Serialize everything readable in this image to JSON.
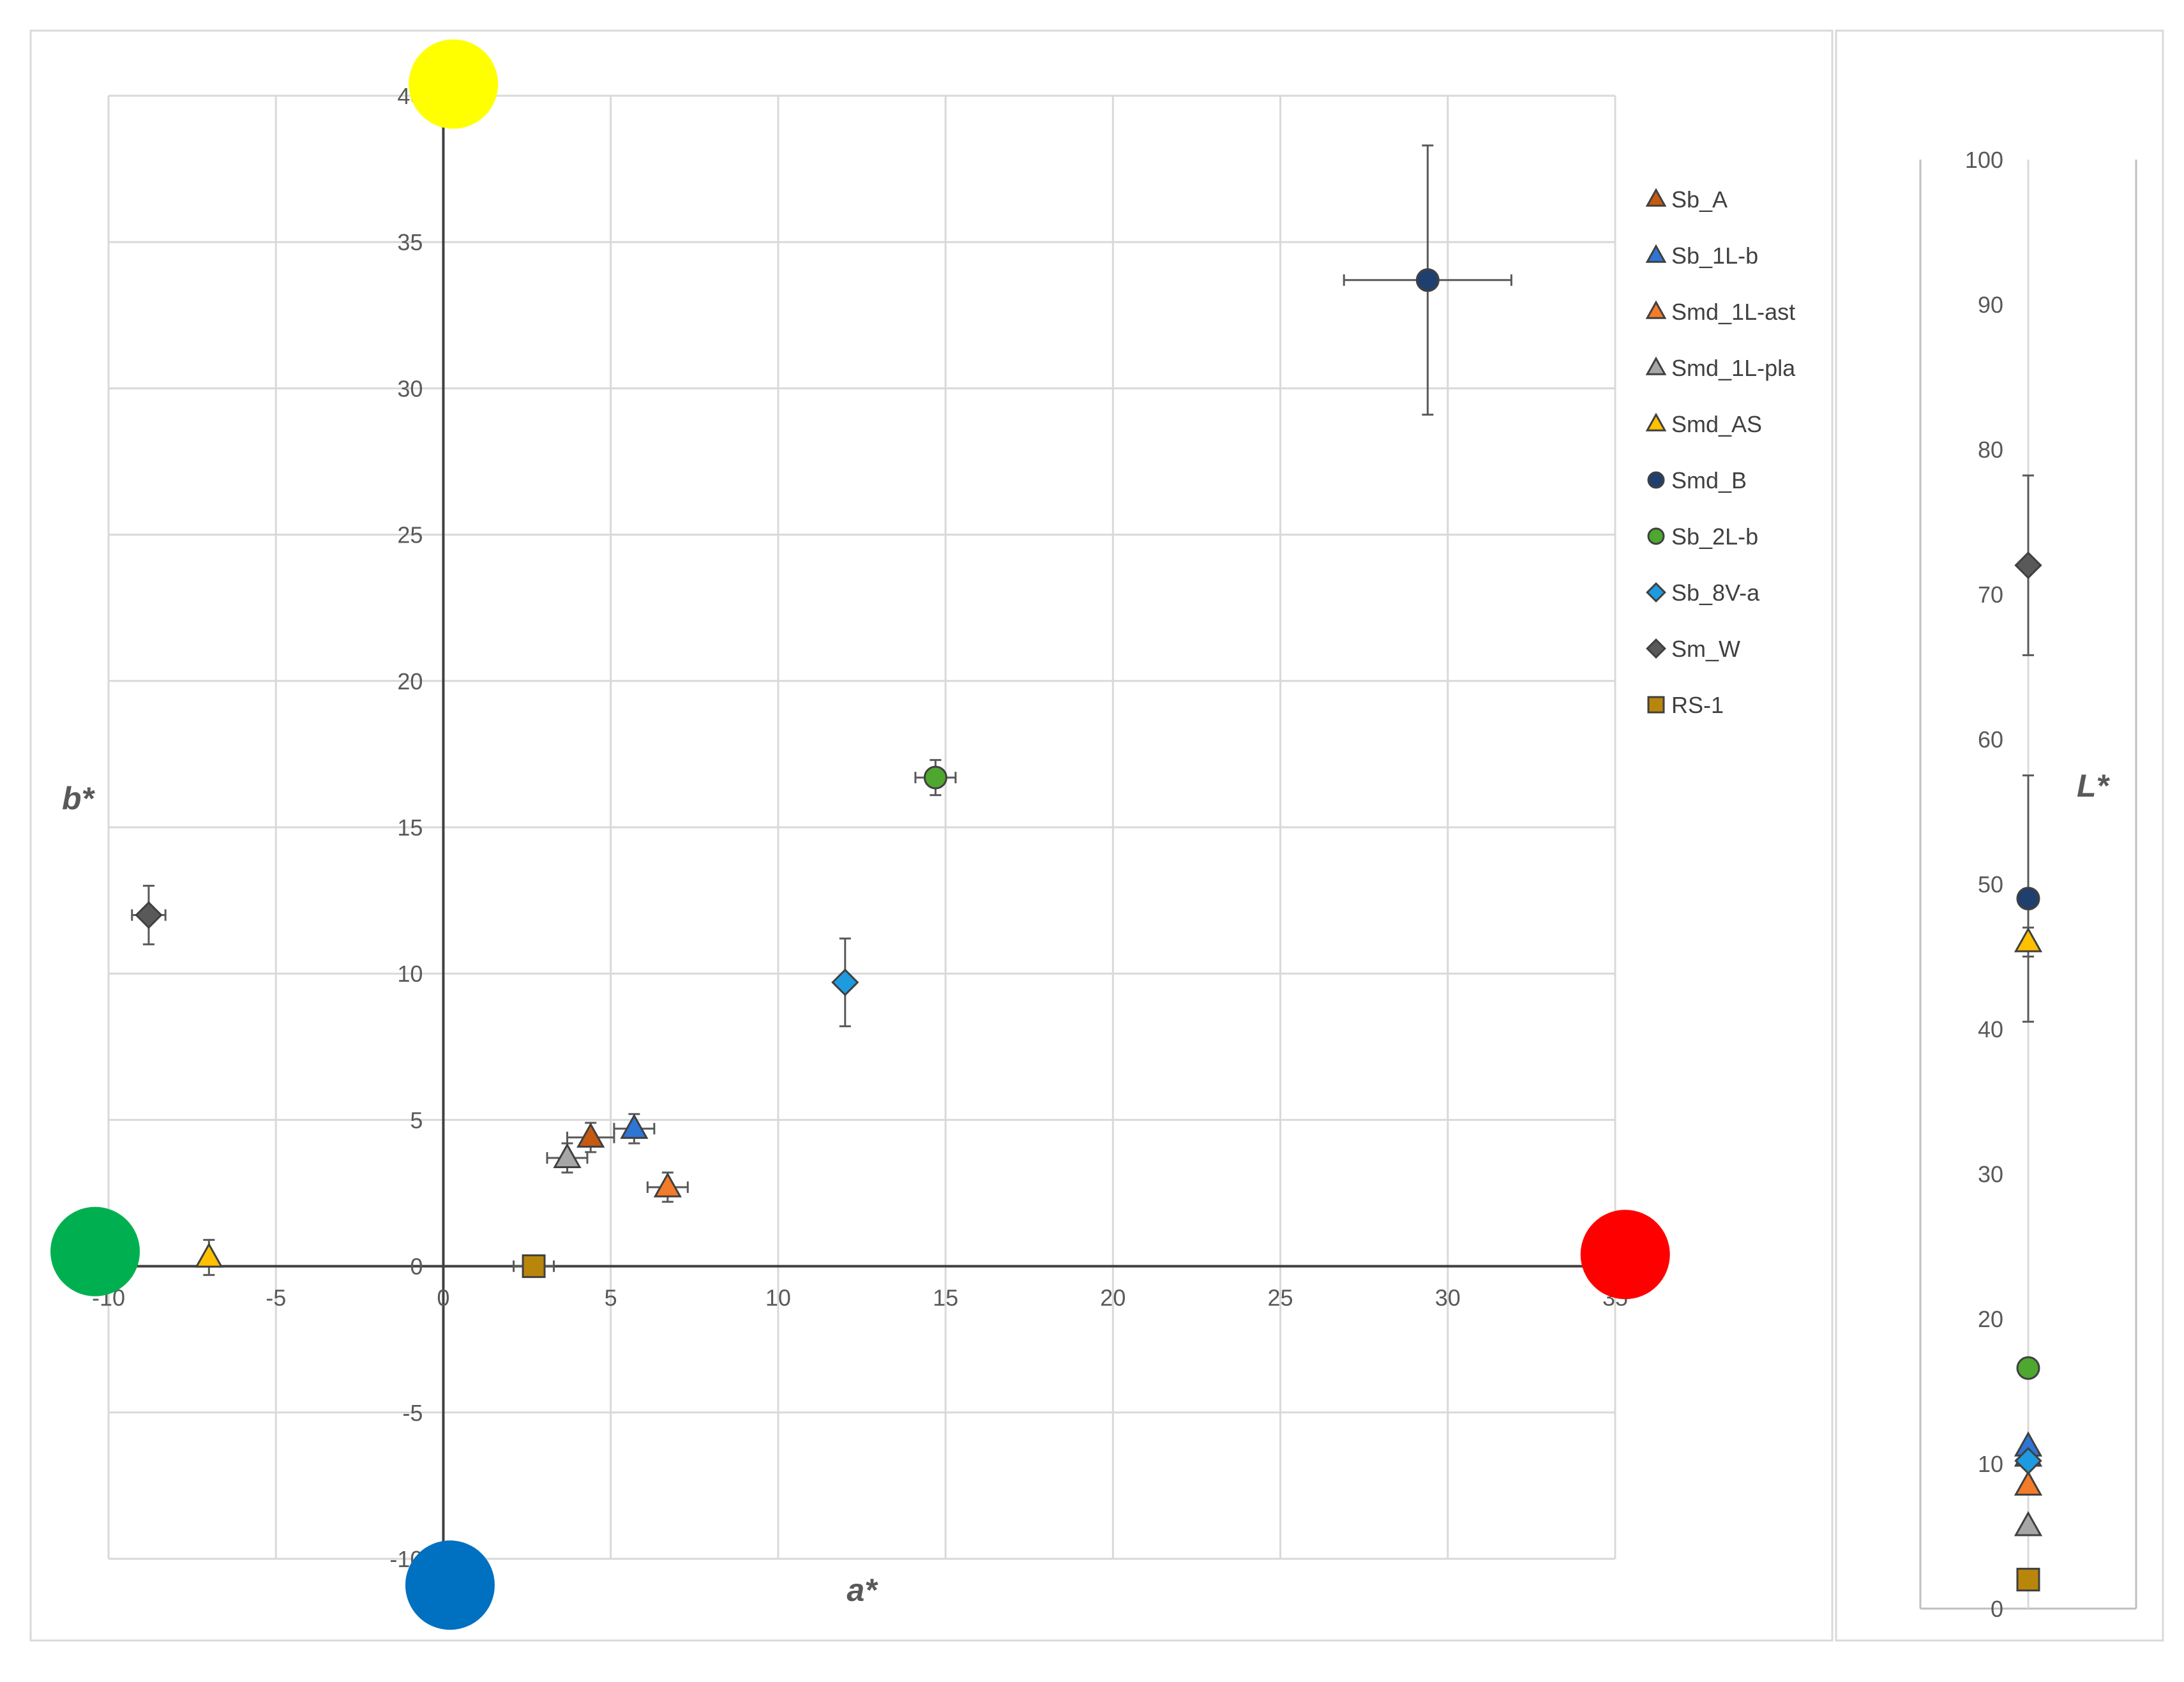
{
  "chart_data": [
    {
      "type": "scatter",
      "title": "",
      "xlabel": "a*",
      "ylabel": "b*",
      "xlim": [
        -10,
        35
      ],
      "ylim": [
        -10,
        40
      ],
      "xticks": [
        -10,
        -5,
        0,
        5,
        10,
        15,
        20,
        25,
        30,
        35
      ],
      "yticks": [
        -10,
        -5,
        0,
        5,
        10,
        15,
        20,
        25,
        30,
        35,
        40
      ],
      "xtick_labels": [
        "-10",
        "-5",
        "0",
        "5",
        "10",
        "15",
        "20",
        "25",
        "30",
        "35"
      ],
      "ytick_labels": [
        "-10",
        "-5",
        "0",
        "5",
        "10",
        "15",
        "20",
        "25",
        "30",
        "35",
        "40"
      ],
      "grid": true,
      "legend_position": "right",
      "reference_points": [
        {
          "name": "red",
          "color": "#ff0000",
          "a": 35.3,
          "b": 0.4
        },
        {
          "name": "green",
          "color": "#00b050",
          "a": -10.4,
          "b": 0.5
        },
        {
          "name": "yellow",
          "color": "#ffff00",
          "a": 0.3,
          "b": 40.4
        },
        {
          "name": "blue",
          "color": "#0070c0",
          "a": 0.2,
          "b": -10.9
        }
      ],
      "series": [
        {
          "name": "Sb_A",
          "marker": "triangle",
          "color": "#c0504d",
          "fill": "#c55a11",
          "a": 4.4,
          "b": 4.4,
          "a_err": 0.7,
          "b_err": 0.5
        },
        {
          "name": "Sb_1L-b",
          "marker": "triangle",
          "color": "#1f6fc5",
          "fill": "#2e75d6",
          "a": 5.7,
          "b": 4.7,
          "a_err": 0.6,
          "b_err": 0.5
        },
        {
          "name": "Smd_1L-ast",
          "marker": "triangle",
          "color": "#ed7d31",
          "fill": "#f47b2a",
          "a": 6.7,
          "b": 2.7,
          "a_err": 0.6,
          "b_err": 0.5
        },
        {
          "name": "Smd_1L-pla",
          "marker": "triangle",
          "color": "#a5a5a5",
          "fill": "#a6a6a6",
          "a": 3.7,
          "b": 3.7,
          "a_err": 0.6,
          "b_err": 0.5
        },
        {
          "name": "Smd_AS",
          "marker": "triangle",
          "color": "#ffc000",
          "fill": "#ffc000",
          "a": -7.0,
          "b": 0.3,
          "a_err": 0.0,
          "b_err": 0.6
        },
        {
          "name": "Smd_B",
          "marker": "circle",
          "color": "#1f3864",
          "fill": "#1f3f6e",
          "a": 29.4,
          "b": 33.7,
          "a_err": 2.5,
          "b_err": 4.6
        },
        {
          "name": "Sb_2L-b",
          "marker": "circle",
          "color": "#4ea72e",
          "fill": "#4ea72e",
          "a": 14.7,
          "b": 16.7,
          "a_err": 0.6,
          "b_err": 0.6
        },
        {
          "name": "Sb_8V-a",
          "marker": "diamond",
          "color": "#1e9be0",
          "fill": "#1e9be0",
          "a": 12.0,
          "b": 9.7,
          "a_err": 0.0,
          "b_err": 1.5
        },
        {
          "name": "Sm_W",
          "marker": "diamond",
          "color": "#595959",
          "fill": "#595959",
          "a": -8.8,
          "b": 12.0,
          "a_err": 0.5,
          "b_err": 1.0
        },
        {
          "name": "RS-1",
          "marker": "square",
          "color": "#7f6000",
          "fill": "#b8860b",
          "a": 2.7,
          "b": 0.0,
          "a_err": 0.6,
          "b_err": 0.0
        }
      ]
    },
    {
      "type": "scatter",
      "title": "",
      "xlabel": "",
      "ylabel": "L*",
      "ylim": [
        0,
        100
      ],
      "yticks": [
        0,
        10,
        20,
        30,
        40,
        50,
        60,
        70,
        80,
        90,
        100
      ],
      "ytick_labels": [
        "0",
        "10",
        "20",
        "30",
        "40",
        "50",
        "60",
        "70",
        "80",
        "90",
        "100"
      ],
      "grid": false,
      "series": [
        {
          "name": "Sb_A",
          "L": 10.5,
          "L_err": 0.4
        },
        {
          "name": "Sb_1L-b",
          "L": 11.2,
          "L_err": 0.4
        },
        {
          "name": "Smd_1L-ast",
          "L": 8.5,
          "L_err": 0.3
        },
        {
          "name": "Smd_1L-pla",
          "L": 5.7,
          "L_err": 0.3
        },
        {
          "name": "Smd_AS",
          "L": 46.0,
          "L_err": 1.0
        },
        {
          "name": "Smd_B",
          "L": 49.0,
          "L_err": 8.5
        },
        {
          "name": "Sb_2L-b",
          "L": 16.6,
          "L_err": 0.5
        },
        {
          "name": "Sb_8V-a",
          "L": 10.2,
          "L_err": 0.4
        },
        {
          "name": "Sm_W",
          "L": 72.0,
          "L_err": 6.2
        },
        {
          "name": "RS-1",
          "L": 2.0,
          "L_err": 0.2
        }
      ]
    }
  ]
}
